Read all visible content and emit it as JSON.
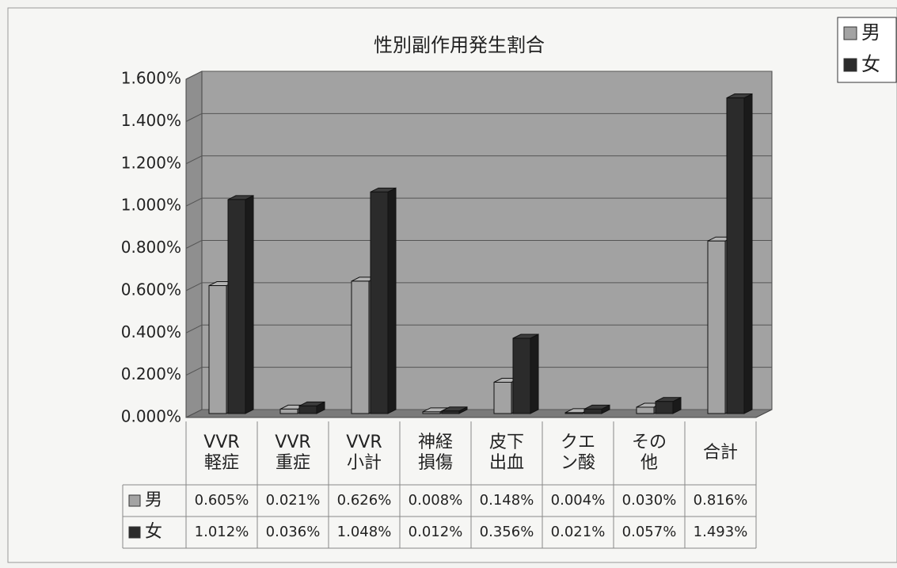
{
  "chart_data": {
    "type": "bar3d",
    "title": "性別副作用発生割合",
    "categories": [
      [
        "VVR",
        "軽症"
      ],
      [
        "VVR",
        "重症"
      ],
      [
        "VVR",
        "小計"
      ],
      [
        "神経",
        "損傷"
      ],
      [
        "皮下",
        "出血"
      ],
      [
        "クエ",
        "ン酸"
      ],
      [
        "その",
        "他"
      ],
      [
        "合計"
      ]
    ],
    "series": [
      {
        "name": "男",
        "color": "#a3a3a3",
        "values": [
          0.605,
          0.021,
          0.626,
          0.008,
          0.148,
          0.004,
          0.03,
          0.816
        ],
        "value_labels": [
          "0.605%",
          "0.021%",
          "0.626%",
          "0.008%",
          "0.148%",
          "0.004%",
          "0.030%",
          "0.816%"
        ]
      },
      {
        "name": "女",
        "color": "#2b2b2b",
        "values": [
          1.012,
          0.036,
          1.048,
          0.012,
          0.356,
          0.021,
          0.057,
          1.493
        ],
        "value_labels": [
          "1.012%",
          "0.036%",
          "1.048%",
          "0.012%",
          "0.356%",
          "0.021%",
          "0.057%",
          "1.493%"
        ]
      }
    ],
    "ylim": [
      0,
      1.6
    ],
    "yticks": [
      {
        "value": 0,
        "label": "0.000%"
      },
      {
        "value": 0.2,
        "label": "0.200%"
      },
      {
        "value": 0.4,
        "label": "0.400%"
      },
      {
        "value": 0.6,
        "label": "0.600%"
      },
      {
        "value": 0.8,
        "label": "0.800%"
      },
      {
        "value": 1.0,
        "label": "1.000%"
      },
      {
        "value": 1.2,
        "label": "1.200%"
      },
      {
        "value": 1.4,
        "label": "1.400%"
      },
      {
        "value": 1.6,
        "label": "1.600%"
      }
    ],
    "grid": true,
    "legend": "top-right"
  }
}
